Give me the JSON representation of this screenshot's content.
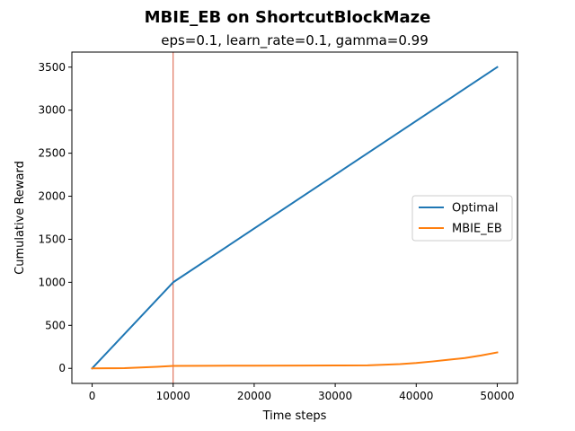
{
  "chart_data": {
    "type": "line",
    "title": "MBIE_EB on ShortcutBlockMaze",
    "subtitle": "eps=0.1, learn_rate=0.1, gamma=0.99",
    "xlabel": "Time steps",
    "ylabel": "Cumulative Reward",
    "xlim": [
      -2500,
      52500
    ],
    "ylim": [
      -175,
      3675
    ],
    "xticks": [
      0,
      10000,
      20000,
      30000,
      40000,
      50000
    ],
    "yticks": [
      0,
      500,
      1000,
      1500,
      2000,
      2500,
      3000,
      3500
    ],
    "grid": false,
    "legend_position": "center-right",
    "vline": {
      "x": 10000,
      "color": "#d9593f"
    },
    "series": [
      {
        "name": "Optimal",
        "color": "#1f77b4",
        "x": [
          0,
          10000,
          50000
        ],
        "y": [
          0,
          1000,
          3500
        ]
      },
      {
        "name": "MBIE_EB",
        "color": "#ff7f0e",
        "x": [
          0,
          2000,
          4000,
          6000,
          8000,
          10000,
          14000,
          20000,
          26000,
          30000,
          34000,
          38000,
          40000,
          42000,
          44000,
          46000,
          48000,
          50000
        ],
        "y": [
          0,
          1,
          2,
          10,
          18,
          28,
          30,
          31,
          32,
          33,
          35,
          50,
          62,
          80,
          100,
          120,
          150,
          185
        ]
      }
    ]
  }
}
